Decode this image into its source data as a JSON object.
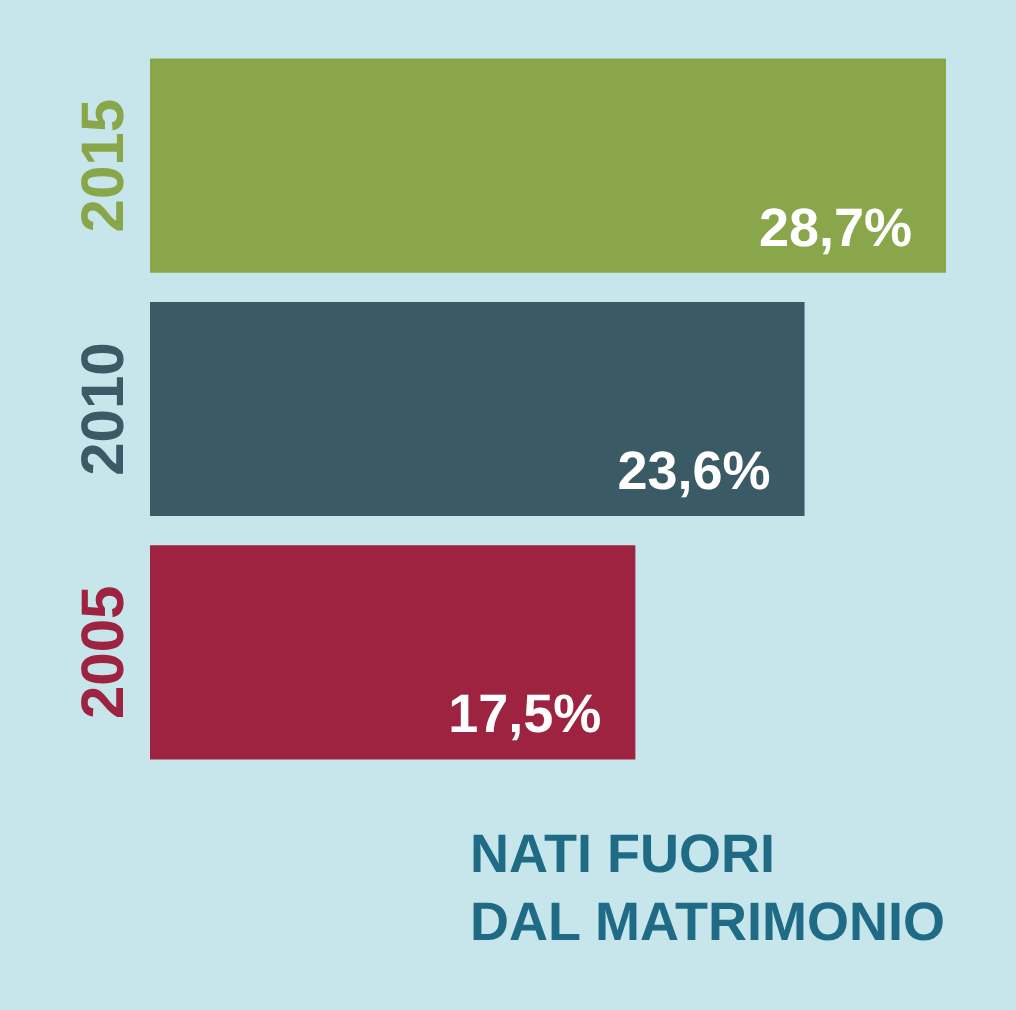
{
  "chart_data": {
    "type": "bar",
    "orientation": "horizontal",
    "title": "NATI FUORI\nDAL MATRIMONIO",
    "categories": [
      "2015",
      "2010",
      "2005"
    ],
    "values": [
      28.7,
      23.6,
      17.5
    ],
    "colors": [
      "#8aa64a",
      "#3a5a65",
      "#9e2340"
    ],
    "value_labels": [
      "28,7%",
      "23,6%",
      "17,5%"
    ]
  }
}
